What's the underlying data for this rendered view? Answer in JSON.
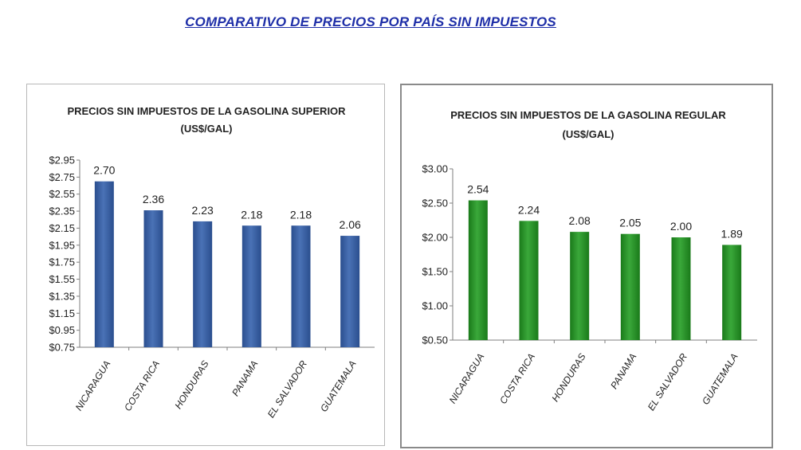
{
  "page": {
    "title": "COMPARATIVO  DE PRECIOS  POR PAÍS SIN IMPUESTOS"
  },
  "chart_data": [
    {
      "type": "bar",
      "title": "PRECIOS SIN IMPUESTOS DE LA GASOLINA SUPERIOR",
      "subtitle": "(US$/GAL)",
      "categories": [
        "NICARAGUA",
        "COSTA RICA",
        "HONDURAS",
        "PANAMA",
        "EL SALVADOR",
        "GUATEMALA"
      ],
      "values": [
        2.7,
        2.36,
        2.23,
        2.18,
        2.18,
        2.06
      ],
      "data_labels": [
        "2.70",
        "2.36",
        "2.23",
        "2.18",
        "2.18",
        "2.06"
      ],
      "ylim": [
        0.75,
        2.95
      ],
      "yticks": [
        0.75,
        0.95,
        1.15,
        1.35,
        1.55,
        1.75,
        1.95,
        2.15,
        2.35,
        2.55,
        2.75,
        2.95
      ],
      "ytick_labels": [
        "$0.75",
        "$0.95",
        "$1.15",
        "$1.35",
        "$1.55",
        "$1.75",
        "$1.95",
        "$2.15",
        "$2.35",
        "$2.55",
        "$2.75",
        "$2.95"
      ],
      "xlabel": "",
      "ylabel": "",
      "grid": false,
      "legend": "none",
      "bar_color": "#2a4e8e",
      "bar_highlight": "#4a72b6"
    },
    {
      "type": "bar",
      "title": "PRECIOS SIN IMPUESTOS DE LA GASOLINA REGULAR",
      "subtitle": "(US$/GAL)",
      "categories": [
        "NICARAGUA",
        "COSTA RICA",
        "HONDURAS",
        "PANAMA",
        "EL SALVADOR",
        "GUATEMALA"
      ],
      "values": [
        2.54,
        2.24,
        2.08,
        2.05,
        2.0,
        1.89
      ],
      "data_labels": [
        "2.54",
        "2.24",
        "2.08",
        "2.05",
        "2.00",
        "1.89"
      ],
      "ylim": [
        0.5,
        3.0
      ],
      "yticks": [
        0.5,
        1.0,
        1.5,
        2.0,
        2.5,
        3.0
      ],
      "ytick_labels": [
        "$0.50",
        "$1.00",
        "$1.50",
        "$2.00",
        "$2.50",
        "$3.00"
      ],
      "xlabel": "",
      "ylabel": "",
      "grid": false,
      "legend": "none",
      "bar_color": "#1a7a1a",
      "bar_highlight": "#3aa83a"
    }
  ]
}
